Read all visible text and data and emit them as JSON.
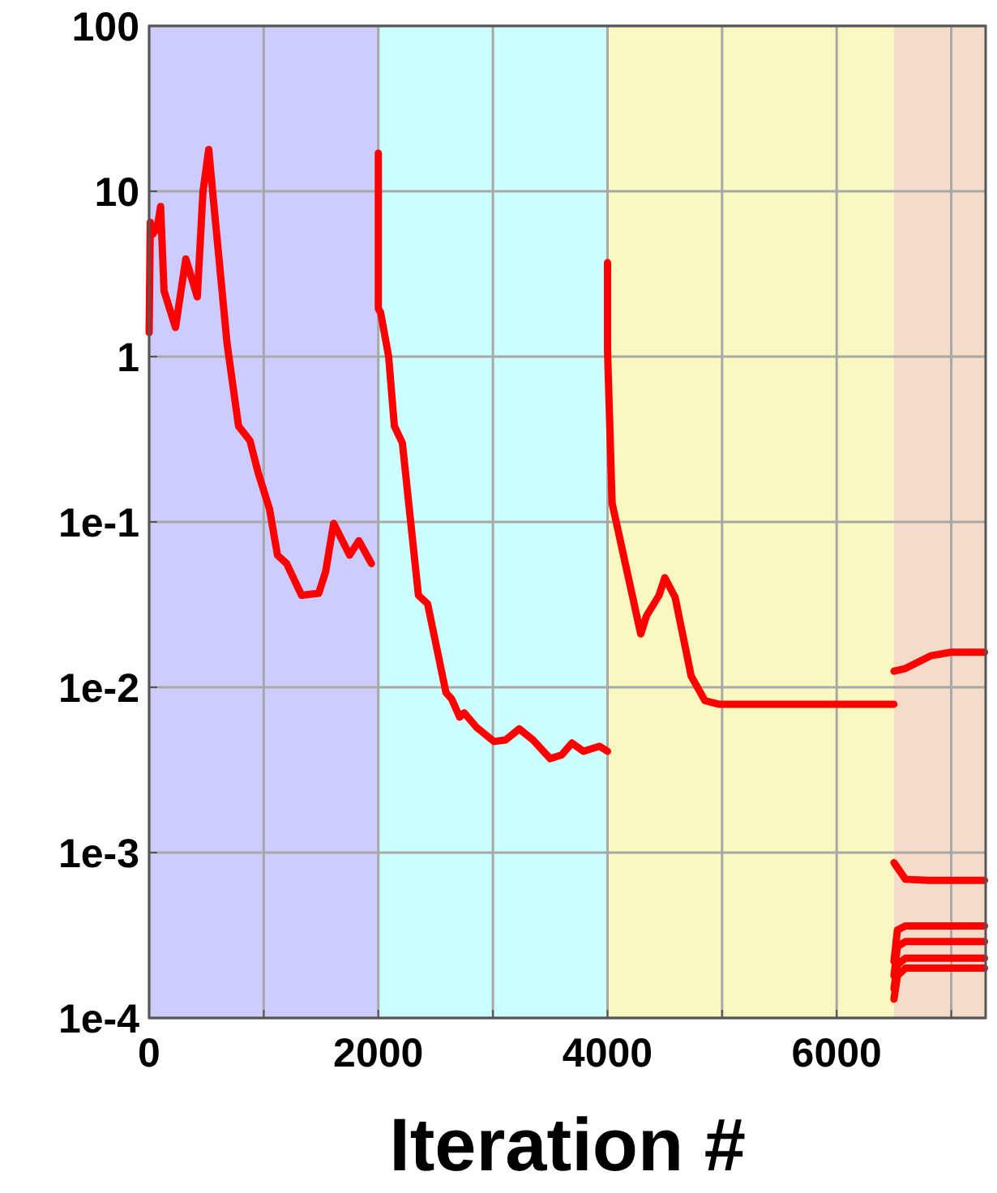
{
  "chart_data": {
    "type": "line",
    "xlabel": "Iteration #",
    "log": "y",
    "grid": true,
    "marker": "none",
    "line_style": "solid",
    "xlim": [
      0,
      7300
    ],
    "ylim": [
      0.0001,
      100
    ],
    "xticks": [
      0,
      {
        "value": 1000,
        "label": null
      },
      2000,
      {
        "value": 3000,
        "label": null
      },
      4000,
      {
        "value": 5000,
        "label": null
      },
      6000,
      {
        "value": 7000,
        "label": null
      }
    ],
    "yticks": [
      {
        "value": 0.0001,
        "label": "1e-4"
      },
      {
        "value": 0.001,
        "label": "1e-3"
      },
      {
        "value": 0.01,
        "label": "1e-2"
      },
      {
        "value": 0.1,
        "label": "1e-1"
      },
      1,
      10,
      100
    ],
    "bands": [
      {
        "axis": "x",
        "from": 0,
        "to": 2000,
        "color": "#ccccff"
      },
      {
        "axis": "x",
        "from": 2000,
        "to": 4000,
        "color": "#ccffff"
      },
      {
        "axis": "x",
        "from": 4000,
        "to": 6500,
        "color": "#f8f8c0"
      },
      {
        "axis": "x",
        "from": 6500,
        "to": 7300,
        "color": "#f5dcc8"
      }
    ],
    "series": [
      {
        "color": "#ff0000",
        "x": [
          0,
          10,
          30,
          70,
          100,
          130,
          230,
          320,
          420,
          470,
          520,
          560,
          680,
          780,
          880,
          950,
          1050,
          1120,
          1200,
          1330,
          1480,
          1540,
          1610,
          1750,
          1830,
          1940
        ],
        "values": [
          1.4,
          6.5,
          5.5,
          6.0,
          8.1,
          2.5,
          1.5,
          3.9,
          2.3,
          10,
          17.9,
          9,
          1.2,
          0.38,
          0.31,
          0.2,
          0.12,
          0.063,
          0.056,
          0.036,
          0.037,
          0.05,
          0.098,
          0.063,
          0.077,
          0.056
        ]
      },
      {
        "color": "#ff0000",
        "x": [
          2000,
          2000,
          2020,
          2090,
          2140,
          2210,
          2290,
          2350,
          2430,
          2590,
          2640,
          2710,
          2750,
          2860,
          3010,
          3110,
          3230,
          3350,
          3500,
          3600,
          3690,
          3790,
          3930,
          4000
        ],
        "values": [
          17,
          1.95,
          1.85,
          1.0,
          0.38,
          0.3,
          0.089,
          0.036,
          0.032,
          0.0093,
          0.0085,
          0.0066,
          0.007,
          0.0057,
          0.0047,
          0.0048,
          0.0056,
          0.0048,
          0.0037,
          0.0039,
          0.0046,
          0.0041,
          0.0044,
          0.0041
        ]
      },
      {
        "color": "#ff0000",
        "x": [
          4000,
          4000,
          4040,
          4290,
          4340,
          4450,
          4500,
          4590,
          4730,
          4850,
          4970,
          6500
        ],
        "values": [
          3.7,
          1.1,
          0.13,
          0.021,
          0.027,
          0.036,
          0.046,
          0.035,
          0.0117,
          0.0083,
          0.0079,
          0.0079
        ]
      },
      {
        "color": "#ff0000",
        "x": [
          6500,
          6600,
          6820,
          7000,
          7290
        ],
        "values": [
          0.0125,
          0.013,
          0.0155,
          0.0163,
          0.0163
        ]
      },
      {
        "color": "#ff0000",
        "x": [
          6500,
          6600,
          6800,
          7290
        ],
        "values": [
          0.00087,
          0.00069,
          0.00068,
          0.00068
        ]
      },
      {
        "color": "#ff0000",
        "x": [
          6500,
          6530,
          6600,
          7290
        ],
        "values": [
          0.00022,
          0.00034,
          0.00036,
          0.00036
        ]
      },
      {
        "color": "#ff0000",
        "x": [
          6500,
          6530,
          6600,
          7290
        ],
        "values": [
          0.00018,
          0.00027,
          0.00029,
          0.00029
        ]
      },
      {
        "color": "#ff0000",
        "x": [
          6500,
          6530,
          6600,
          7290
        ],
        "values": [
          0.00015,
          0.00021,
          0.00023,
          0.00023
        ]
      },
      {
        "color": "#ff0000",
        "x": [
          6500,
          6530,
          6600,
          7290
        ],
        "values": [
          0.00013,
          0.00018,
          0.0002,
          0.0002
        ]
      }
    ]
  }
}
